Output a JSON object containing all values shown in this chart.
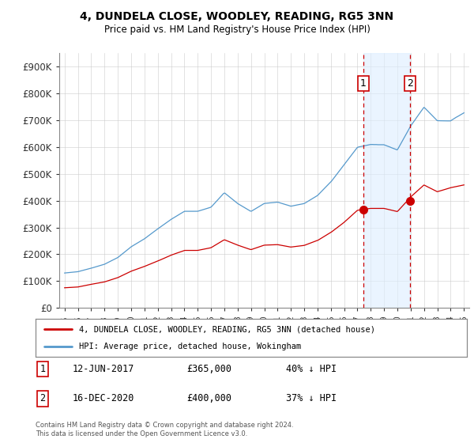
{
  "title": "4, DUNDELA CLOSE, WOODLEY, READING, RG5 3NN",
  "subtitle": "Price paid vs. HM Land Registry's House Price Index (HPI)",
  "legend_line1": "4, DUNDELA CLOSE, WOODLEY, READING, RG5 3NN (detached house)",
  "legend_line2": "HPI: Average price, detached house, Wokingham",
  "footer": "Contains HM Land Registry data © Crown copyright and database right 2024.\nThis data is licensed under the Open Government Licence v3.0.",
  "annotation1_label": "1",
  "annotation1_date": "12-JUN-2017",
  "annotation1_price": "£365,000",
  "annotation1_hpi": "40% ↓ HPI",
  "annotation2_label": "2",
  "annotation2_date": "16-DEC-2020",
  "annotation2_price": "£400,000",
  "annotation2_hpi": "37% ↓ HPI",
  "hpi_color": "#5599cc",
  "price_color": "#cc0000",
  "vline_color": "#cc0000",
  "shading_color": "#ddeeff",
  "ylim": [
    0,
    950000
  ],
  "yticks": [
    0,
    100000,
    200000,
    300000,
    400000,
    500000,
    600000,
    700000,
    800000,
    900000
  ],
  "ytick_labels": [
    "£0",
    "£100K",
    "£200K",
    "£300K",
    "£400K",
    "£500K",
    "£600K",
    "£700K",
    "£800K",
    "£900K"
  ],
  "sale1_year": 2017.45,
  "sale1_price": 365000,
  "sale2_year": 2020.96,
  "sale2_price": 400000,
  "xlim": [
    1994.6,
    2025.4
  ],
  "xtick_years": [
    1995,
    1996,
    1997,
    1998,
    1999,
    2000,
    2001,
    2002,
    2003,
    2004,
    2005,
    2006,
    2007,
    2008,
    2009,
    2010,
    2011,
    2012,
    2013,
    2014,
    2015,
    2016,
    2017,
    2018,
    2019,
    2020,
    2021,
    2022,
    2023,
    2024,
    2025
  ]
}
